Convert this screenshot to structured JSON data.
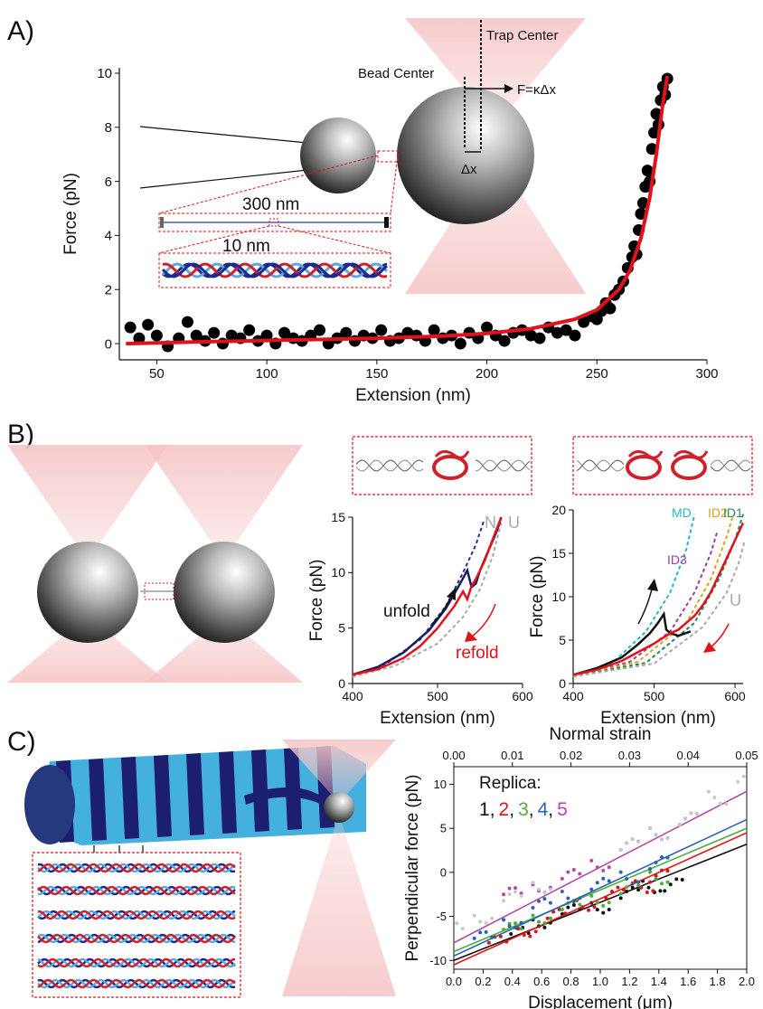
{
  "panels": {
    "a": {
      "label": "A)",
      "trap_center": "Trap Center",
      "bead_center": "Bead Center",
      "force_eq": "F=κΔx",
      "dx": "Δx",
      "len_300": "300 nm",
      "len_10": "10 nm"
    },
    "b": {
      "label": "B)",
      "unfold": "unfold",
      "refold": "refold",
      "n_label": "N",
      "u_label": "U",
      "md": "MD",
      "i2": "ID2",
      "i1": "ID1",
      "i3": "ID3",
      "u2": "U"
    },
    "c": {
      "label": "C)",
      "replica_title": "Replica:",
      "replica_labels": [
        "1",
        "2",
        "3",
        "4",
        "5"
      ],
      "replica_seps": [
        ",",
        ",",
        ",",
        ","
      ]
    }
  },
  "colors": {
    "red": "#e0121b",
    "black": "#111111",
    "trap": "#f6c6c8",
    "navy": "#1c1f70",
    "cyan": "#44b0de"
  },
  "chart_data": [
    {
      "id": "A",
      "type": "scatter",
      "xlabel": "Extension (nm)",
      "ylabel": "Force (pN)",
      "xlim": [
        33,
        300
      ],
      "ylim": [
        -0.6,
        10.2
      ],
      "xticks": [
        50,
        100,
        150,
        200,
        250,
        300
      ],
      "yticks": [
        0,
        2,
        4,
        6,
        8,
        10
      ],
      "grid": false,
      "series": [
        {
          "kind": "points",
          "color": "#000000",
          "x": [
            38,
            42,
            46,
            50,
            55,
            60,
            64,
            68,
            72,
            76,
            80,
            84,
            88,
            92,
            96,
            100,
            104,
            108,
            112,
            116,
            120,
            124,
            128,
            132,
            136,
            140,
            144,
            148,
            152,
            156,
            160,
            164,
            168,
            172,
            176,
            180,
            184,
            188,
            192,
            196,
            200,
            204,
            208,
            212,
            216,
            220,
            224,
            228,
            232,
            236,
            240,
            244,
            248,
            250,
            252,
            254,
            256,
            258,
            260,
            262,
            264,
            266,
            267,
            268,
            269,
            270,
            271,
            272,
            273,
            274,
            275,
            276,
            277,
            278,
            279,
            280,
            281,
            282
          ],
          "y": [
            0.6,
            0.2,
            0.7,
            0.3,
            -0.1,
            0.2,
            0.8,
            0.3,
            0.1,
            0.4,
            0.0,
            0.3,
            0.2,
            0.5,
            0.1,
            0.3,
            0.0,
            0.4,
            0.2,
            0.1,
            0.3,
            0.5,
            0.0,
            0.2,
            0.4,
            0.1,
            0.3,
            0.2,
            0.5,
            0.1,
            0.2,
            0.4,
            0.3,
            0.1,
            0.5,
            0.2,
            0.3,
            0.0,
            0.4,
            0.2,
            0.6,
            0.3,
            0.1,
            0.4,
            0.5,
            0.3,
            0.2,
            0.6,
            0.4,
            0.5,
            0.3,
            0.8,
            1.0,
            0.9,
            1.2,
            1.5,
            1.3,
            1.8,
            2.0,
            2.3,
            2.8,
            3.2,
            3.6,
            3.3,
            4.2,
            4.8,
            5.2,
            5.8,
            6.4,
            6.0,
            7.2,
            7.8,
            8.5,
            8.1,
            9.0,
            9.5,
            9.2,
            9.8
          ]
        },
        {
          "kind": "fit",
          "color": "#e0121b",
          "x": [
            36,
            60,
            90,
            120,
            150,
            180,
            200,
            220,
            240,
            250,
            260,
            265,
            270,
            274,
            277,
            280,
            282
          ],
          "y": [
            0.0,
            0.05,
            0.1,
            0.15,
            0.2,
            0.28,
            0.38,
            0.55,
            0.9,
            1.25,
            2.0,
            2.7,
            3.9,
            5.4,
            7.0,
            8.9,
            9.9
          ]
        }
      ]
    },
    {
      "id": "B1",
      "type": "line",
      "xlabel": "Extension (nm)",
      "ylabel": "Force (pN)",
      "xlim": [
        400,
        600
      ],
      "ylim": [
        0,
        15
      ],
      "xticks": [
        400,
        500,
        600
      ],
      "yticks": [
        0,
        5,
        10,
        15
      ],
      "series": [
        {
          "name": "N",
          "dash": true,
          "color": "#2b2f8a",
          "x": [
            400,
            440,
            480,
            510,
            530,
            545,
            555
          ],
          "y": [
            0.6,
            1.8,
            4.0,
            7.0,
            10.0,
            12.5,
            14.8
          ]
        },
        {
          "name": "U",
          "dash": true,
          "color": "#aaaaaa",
          "x": [
            400,
            450,
            500,
            530,
            550,
            565,
            575
          ],
          "y": [
            0.6,
            1.6,
            3.6,
            6.0,
            8.5,
            11.5,
            14.5
          ]
        },
        {
          "name": "unfold",
          "color": "#1a1c5e",
          "x": [
            400,
            430,
            460,
            490,
            510,
            525,
            535,
            540,
            545,
            550,
            560,
            570,
            575
          ],
          "y": [
            0.8,
            1.5,
            2.8,
            4.8,
            6.8,
            8.8,
            10.2,
            8.7,
            9.0,
            10.2,
            12.0,
            13.8,
            15.0
          ]
        },
        {
          "name": "refold",
          "color": "#e0121b",
          "x": [
            575,
            565,
            555,
            545,
            540,
            535,
            530,
            520,
            500,
            480,
            460,
            430,
            400
          ],
          "y": [
            15.0,
            13.0,
            11.0,
            9.4,
            8.8,
            7.6,
            8.3,
            7.0,
            5.0,
            3.4,
            2.3,
            1.3,
            0.8
          ]
        }
      ]
    },
    {
      "id": "B2",
      "type": "line",
      "xlabel": "Extension (nm)",
      "ylabel": "Force (pN)",
      "xlim": [
        400,
        610
      ],
      "ylim": [
        0,
        20
      ],
      "xticks": [
        400,
        500,
        600
      ],
      "yticks": [
        0,
        5,
        10,
        15,
        20
      ],
      "series": [
        {
          "name": "MD",
          "dash": true,
          "color": "#29b6c8",
          "x": [
            400,
            450,
            490,
            520,
            540,
            550
          ],
          "y": [
            0.8,
            2.5,
            6.0,
            10.5,
            15.5,
            19.5
          ]
        },
        {
          "name": "ID3",
          "dash": true,
          "color": "#a23c9a",
          "x": [
            400,
            470,
            520,
            550,
            570,
            578
          ],
          "y": [
            0.8,
            2.5,
            6.0,
            10.5,
            15.0,
            17.5
          ]
        },
        {
          "name": "ID2",
          "dash": true,
          "color": "#e0a020",
          "x": [
            400,
            480,
            540,
            570,
            590,
            598
          ],
          "y": [
            0.8,
            2.5,
            7.0,
            12.0,
            17.0,
            19.5
          ]
        },
        {
          "name": "ID1",
          "dash": true,
          "color": "#1e8a5a",
          "x": [
            400,
            490,
            550,
            580,
            600,
            610
          ],
          "y": [
            0.8,
            2.4,
            7.0,
            12.0,
            16.5,
            19.5
          ]
        },
        {
          "name": "U",
          "dash": true,
          "color": "#aaaaaa",
          "x": [
            400,
            500,
            560,
            590,
            605,
            612
          ],
          "y": [
            0.8,
            2.3,
            6.5,
            10.5,
            14.0,
            16.5
          ]
        },
        {
          "name": "unfold",
          "color": "#111111",
          "x": [
            400,
            430,
            460,
            480,
            495,
            505,
            512,
            515,
            520,
            530,
            545
          ],
          "y": [
            1.0,
            1.8,
            3.0,
            4.5,
            5.8,
            7.0,
            8.0,
            6.2,
            5.8,
            5.5,
            6.0
          ]
        },
        {
          "name": "refold",
          "color": "#e0121b",
          "x": [
            610,
            600,
            590,
            580,
            570,
            560,
            550,
            540,
            530,
            520,
            510,
            500,
            480,
            460,
            430,
            400
          ],
          "y": [
            18.5,
            16.5,
            14.5,
            12.5,
            10.5,
            9.0,
            7.8,
            7.0,
            6.2,
            5.8,
            5.2,
            4.6,
            3.6,
            2.6,
            1.6,
            1.0
          ]
        }
      ]
    },
    {
      "id": "C",
      "type": "line",
      "xlabel": "Displacement (μm)",
      "ylabel": "Perpendicular force (pN)",
      "x2label": "Normal strain",
      "xlim": [
        0,
        2.0
      ],
      "ylim": [
        -11,
        12
      ],
      "xticks": [
        0.0,
        0.2,
        0.4,
        0.6,
        0.8,
        1.0,
        1.2,
        1.4,
        1.6,
        1.8,
        2.0
      ],
      "yticks": [
        -10,
        -5,
        0,
        5,
        10
      ],
      "x2ticks": [
        "0.00",
        "0.01",
        "0.02",
        "0.03",
        "0.04",
        "0.05"
      ],
      "series": [
        {
          "name": "1",
          "color": "#111111",
          "fit": [
            [
              0,
              -10.0
            ],
            [
              2.0,
              3.2
            ]
          ],
          "x": [
            0.45,
            0.6,
            0.8,
            1.0,
            1.2,
            1.35,
            1.5
          ],
          "y": [
            -7.0,
            -5.5,
            -4.5,
            -3.8,
            -2.5,
            -1.5,
            -1.5
          ]
        },
        {
          "name": "2",
          "color": "#e0121b",
          "fit": [
            [
              0,
              -10.5
            ],
            [
              2.0,
              4.5
            ]
          ],
          "x": [
            0.3,
            0.5,
            0.7,
            0.9,
            1.1,
            1.3,
            1.4
          ],
          "y": [
            -8.0,
            -6.5,
            -5.0,
            -3.5,
            -2.5,
            -1.5,
            -0.5
          ]
        },
        {
          "name": "3",
          "color": "#4cae3a",
          "fit": [
            [
              0,
              -9.0
            ],
            [
              2.0,
              5.0
            ]
          ],
          "x": [
            0.4,
            0.6,
            0.8,
            1.0,
            1.2,
            1.4
          ],
          "y": [
            -6.5,
            -5.0,
            -4.0,
            -3.0,
            -2.0,
            -0.5
          ]
        },
        {
          "name": "4",
          "color": "#2a64b0",
          "fit": [
            [
              0,
              -9.5
            ],
            [
              2.0,
              6.0
            ]
          ],
          "x": [
            0.2,
            0.4,
            0.6,
            0.8,
            1.0,
            1.2,
            1.4
          ],
          "y": [
            -7.5,
            -5.5,
            -3.8,
            -2.5,
            -1.5,
            -0.5,
            1.0
          ]
        },
        {
          "name": "5",
          "color": "#b04aa8",
          "fit": [
            [
              0,
              -8.0
            ],
            [
              2.0,
              9.2
            ]
          ],
          "x": [
            0.4,
            0.6,
            0.8,
            1.0,
            1.2,
            1.4,
            1.6
          ],
          "y": [
            -2.5,
            -1.5,
            -0.5,
            1.0,
            3.0,
            4.5,
            6.0
          ]
        },
        {
          "name": "grey",
          "color": "#c8c8c8",
          "fit": null,
          "x": [
            0.0,
            0.2,
            0.4,
            0.6,
            1.2,
            1.4,
            1.6,
            1.8,
            2.0
          ],
          "y": [
            -6.5,
            -5.0,
            -3.0,
            -1.5,
            3.0,
            4.5,
            6.0,
            8.5,
            11.0
          ]
        }
      ]
    }
  ]
}
